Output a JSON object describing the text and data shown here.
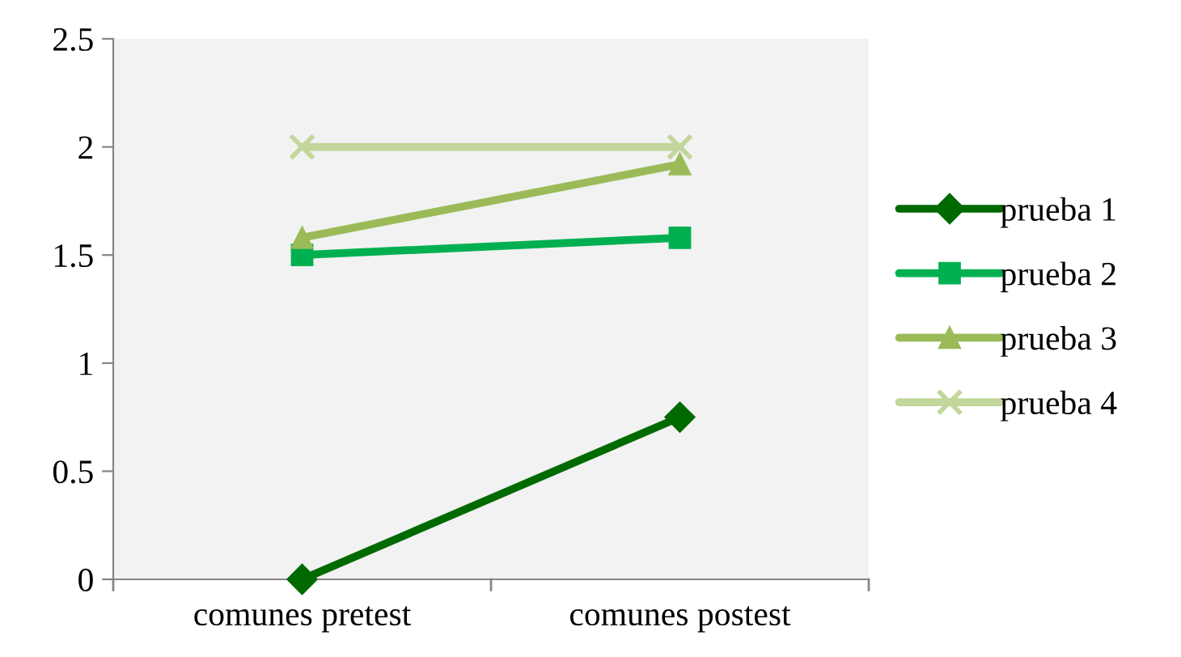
{
  "chart_data": {
    "type": "line",
    "categories": [
      "comunes pretest",
      "comunes postest"
    ],
    "series": [
      {
        "name": "prueba 1",
        "color": "#006a00",
        "values": [
          0,
          0.75
        ],
        "marker": "diamond"
      },
      {
        "name": "prueba 2",
        "color": "#00b050",
        "values": [
          1.5,
          1.58
        ],
        "marker": "square"
      },
      {
        "name": "prueba 3",
        "color": "#9bbb59",
        "values": [
          1.58,
          1.92
        ],
        "marker": "triangle"
      },
      {
        "name": "prueba 4",
        "color": "#c3d69b",
        "values": [
          2,
          2
        ],
        "marker": "cross"
      }
    ],
    "ylim": [
      0,
      2.5
    ],
    "yticks": [
      0,
      {
        "value": 0.5,
        "label": "0.5"
      },
      1,
      {
        "value": 1.5,
        "label": "1.5"
      },
      2,
      {
        "value": 2.5,
        "label": "2.5"
      }
    ],
    "grid": false,
    "legend": "right",
    "line_style": "solid"
  }
}
